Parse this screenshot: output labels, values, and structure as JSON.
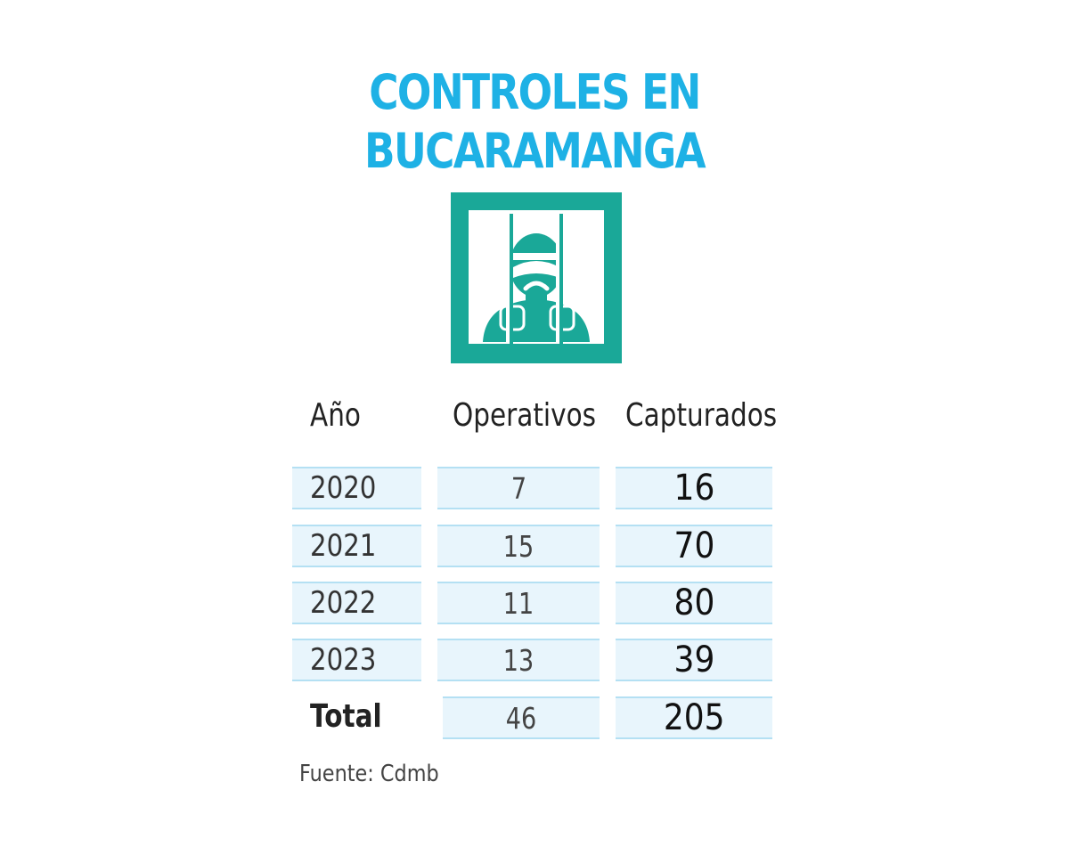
{
  "title_line1": "CONTROLES EN",
  "title_line2": "BUCARAMANGA",
  "icon": "prisoner-behind-bars-icon",
  "colors": {
    "title": "#1eb1e5",
    "icon_bg": "#1aa898",
    "cell_bg": "#e8f5fc",
    "cell_border": "#b4e0f3"
  },
  "chart_data": {
    "type": "table",
    "columns": [
      "Año",
      "Operativos",
      "Capturados"
    ],
    "rows": [
      {
        "year": "2020",
        "operativos": "7",
        "capturados": "16"
      },
      {
        "year": "2021",
        "operativos": "15",
        "capturados": "70"
      },
      {
        "year": "2022",
        "operativos": "11",
        "capturados": "80"
      },
      {
        "year": "2023",
        "operativos": "13",
        "capturados": "39"
      }
    ],
    "total": {
      "label": "Total",
      "operativos": "46",
      "capturados": "205"
    }
  },
  "source": "Fuente: Cdmb"
}
